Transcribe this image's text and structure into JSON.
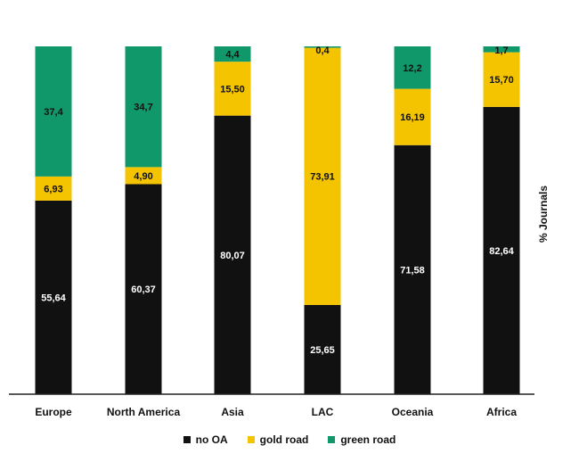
{
  "chart_data": {
    "type": "bar",
    "stacked": true,
    "categories": [
      "Europe",
      "North America",
      "Asia",
      "LAC",
      "Oceania",
      "Africa"
    ],
    "series": [
      {
        "name": "no OA",
        "color": "#111111",
        "label_color": "#ffffff",
        "values": [
          55.64,
          60.37,
          80.07,
          25.65,
          71.58,
          82.64
        ],
        "labels": [
          "55,64",
          "60,37",
          "80,07",
          "25,65",
          "71,58",
          "82,64"
        ]
      },
      {
        "name": "gold road",
        "color": "#f5c400",
        "label_color": "#111111",
        "values": [
          6.93,
          4.9,
          15.5,
          73.91,
          16.19,
          15.7
        ],
        "labels": [
          "6,93",
          "4,90",
          "15,50",
          "73,91",
          "16,19",
          "15,70"
        ]
      },
      {
        "name": "green road",
        "color": "#10986a",
        "label_color": "#111111",
        "values": [
          37.4,
          34.7,
          4.4,
          0.4,
          12.2,
          1.7
        ],
        "labels": [
          "37,4",
          "34,7",
          "4,4",
          "0,4",
          "12,2",
          "1,7"
        ]
      }
    ],
    "ylabel": "% Journals",
    "ylim": [
      0,
      100
    ],
    "grid": false,
    "legend_position": "bottom"
  }
}
